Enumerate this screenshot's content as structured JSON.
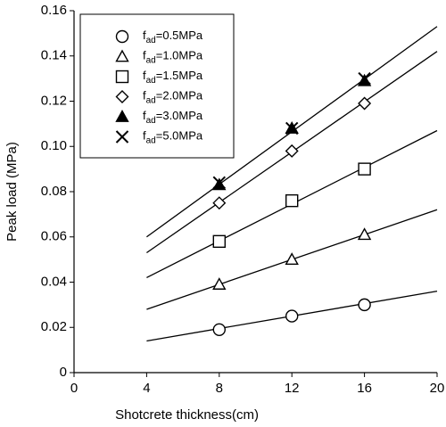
{
  "chart_data": {
    "type": "scatter",
    "x_label": "Shotcrete thickness(cm)",
    "y_label": "Peak load (MPa)",
    "xlim": [
      0,
      20
    ],
    "xticks": [
      0,
      4,
      8,
      12,
      16,
      20
    ],
    "ylim": [
      0,
      0.16
    ],
    "yticks": [
      0,
      0.02,
      0.04,
      0.06,
      0.08,
      {
        "value": 0.1,
        "label": "0.10"
      },
      0.12,
      0.14,
      0.16
    ],
    "legend": "upper left",
    "series": [
      {
        "name": "fad=0.5MPa",
        "marker": "circle",
        "color": "#000000",
        "x": [
          8,
          12,
          16
        ],
        "values": [
          0.019,
          0.025,
          0.03
        ]
      },
      {
        "name": "fad=1.0MPa",
        "marker": "triangle",
        "color": "#000000",
        "x": [
          8,
          12,
          16
        ],
        "values": [
          0.039,
          0.05,
          0.061
        ]
      },
      {
        "name": "fad=1.5MPa",
        "marker": "square",
        "color": "#000000",
        "x": [
          8,
          12,
          16
        ],
        "values": [
          0.058,
          0.076,
          0.09
        ]
      },
      {
        "name": "fad=2.0MPa",
        "marker": "diamond",
        "color": "#000000",
        "x": [
          8,
          12,
          16
        ],
        "values": [
          0.075,
          0.098,
          0.119
        ]
      },
      {
        "name": "fad=3.0MPa",
        "marker": "triangle-filled",
        "color": "#000000",
        "x": [
          8,
          12,
          16
        ],
        "values": [
          0.083,
          0.108,
          0.129
        ]
      },
      {
        "name": "fad=5.0MPa",
        "marker": "x",
        "color": "#000000",
        "x": [
          8,
          12,
          16
        ],
        "values": [
          0.084,
          0.108,
          0.13
        ]
      }
    ],
    "fit_lines": [
      {
        "color": "#000000",
        "x": [
          4,
          20
        ],
        "values": [
          0.014,
          0.036
        ]
      },
      {
        "color": "#000000",
        "x": [
          4,
          20
        ],
        "values": [
          0.028,
          0.072
        ]
      },
      {
        "color": "#000000",
        "x": [
          4,
          20
        ],
        "values": [
          0.042,
          0.107
        ]
      },
      {
        "color": "#000000",
        "x": [
          4,
          20
        ],
        "values": [
          0.053,
          0.142
        ]
      },
      {
        "color": "#000000",
        "x": [
          4,
          20
        ],
        "values": [
          0.06,
          0.153
        ]
      }
    ]
  }
}
